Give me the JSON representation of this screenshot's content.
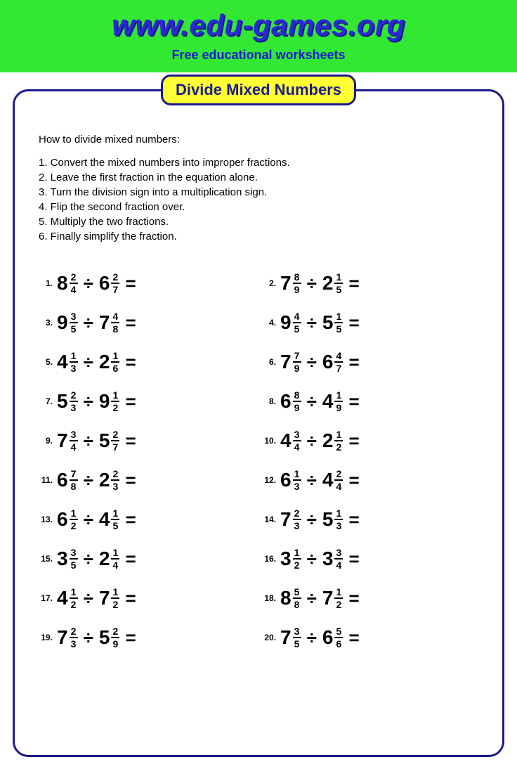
{
  "header": {
    "site_url": "www.edu-games.org",
    "subtitle": "Free educational worksheets",
    "bg_color": "#33e833",
    "url_color": "#2a2ad4"
  },
  "badge": {
    "text": "Divide Mixed Numbers",
    "bg_color": "#ffff33",
    "border_color": "#1a1a8a",
    "text_color": "#1a1a8a"
  },
  "howto": {
    "title": "How to divide mixed numbers:",
    "steps": [
      "1. Convert the mixed numbers into improper fractions.",
      "2. Leave the first fraction in the equation alone.",
      "3. Turn the division sign into a multiplication sign.",
      "4. Flip the second fraction over.",
      "5. Multiply the two fractions.",
      "6. Finally simplify the fraction."
    ]
  },
  "operator": "÷",
  "equals": "=",
  "problems": [
    {
      "n": "1.",
      "a": {
        "w": "8",
        "n": "2",
        "d": "4"
      },
      "b": {
        "w": "6",
        "n": "2",
        "d": "7"
      }
    },
    {
      "n": "2.",
      "a": {
        "w": "7",
        "n": "8",
        "d": "9"
      },
      "b": {
        "w": "2",
        "n": "1",
        "d": "5"
      }
    },
    {
      "n": "3.",
      "a": {
        "w": "9",
        "n": "3",
        "d": "5"
      },
      "b": {
        "w": "7",
        "n": "4",
        "d": "8"
      }
    },
    {
      "n": "4.",
      "a": {
        "w": "9",
        "n": "4",
        "d": "5"
      },
      "b": {
        "w": "5",
        "n": "1",
        "d": "5"
      }
    },
    {
      "n": "5.",
      "a": {
        "w": "4",
        "n": "1",
        "d": "3"
      },
      "b": {
        "w": "2",
        "n": "1",
        "d": "6"
      }
    },
    {
      "n": "6.",
      "a": {
        "w": "7",
        "n": "7",
        "d": "9"
      },
      "b": {
        "w": "6",
        "n": "4",
        "d": "7"
      }
    },
    {
      "n": "7.",
      "a": {
        "w": "5",
        "n": "2",
        "d": "3"
      },
      "b": {
        "w": "9",
        "n": "1",
        "d": "2"
      }
    },
    {
      "n": "8.",
      "a": {
        "w": "6",
        "n": "8",
        "d": "9"
      },
      "b": {
        "w": "4",
        "n": "1",
        "d": "9"
      }
    },
    {
      "n": "9.",
      "a": {
        "w": "7",
        "n": "3",
        "d": "4"
      },
      "b": {
        "w": "5",
        "n": "2",
        "d": "7"
      }
    },
    {
      "n": "10.",
      "a": {
        "w": "4",
        "n": "3",
        "d": "4"
      },
      "b": {
        "w": "2",
        "n": "1",
        "d": "2"
      }
    },
    {
      "n": "11.",
      "a": {
        "w": "6",
        "n": "7",
        "d": "8"
      },
      "b": {
        "w": "2",
        "n": "2",
        "d": "3"
      }
    },
    {
      "n": "12.",
      "a": {
        "w": "6",
        "n": "1",
        "d": "3"
      },
      "b": {
        "w": "4",
        "n": "2",
        "d": "4"
      }
    },
    {
      "n": "13.",
      "a": {
        "w": "6",
        "n": "1",
        "d": "2"
      },
      "b": {
        "w": "4",
        "n": "1",
        "d": "5"
      }
    },
    {
      "n": "14.",
      "a": {
        "w": "7",
        "n": "2",
        "d": "3"
      },
      "b": {
        "w": "5",
        "n": "1",
        "d": "3"
      }
    },
    {
      "n": "15.",
      "a": {
        "w": "3",
        "n": "3",
        "d": "5"
      },
      "b": {
        "w": "2",
        "n": "1",
        "d": "4"
      }
    },
    {
      "n": "16.",
      "a": {
        "w": "3",
        "n": "1",
        "d": "2"
      },
      "b": {
        "w": "3",
        "n": "3",
        "d": "4"
      }
    },
    {
      "n": "17.",
      "a": {
        "w": "4",
        "n": "1",
        "d": "2"
      },
      "b": {
        "w": "7",
        "n": "1",
        "d": "2"
      }
    },
    {
      "n": "18.",
      "a": {
        "w": "8",
        "n": "5",
        "d": "8"
      },
      "b": {
        "w": "7",
        "n": "1",
        "d": "2"
      }
    },
    {
      "n": "19.",
      "a": {
        "w": "7",
        "n": "2",
        "d": "3"
      },
      "b": {
        "w": "5",
        "n": "2",
        "d": "9"
      }
    },
    {
      "n": "20.",
      "a": {
        "w": "7",
        "n": "3",
        "d": "5"
      },
      "b": {
        "w": "6",
        "n": "5",
        "d": "6"
      }
    }
  ]
}
